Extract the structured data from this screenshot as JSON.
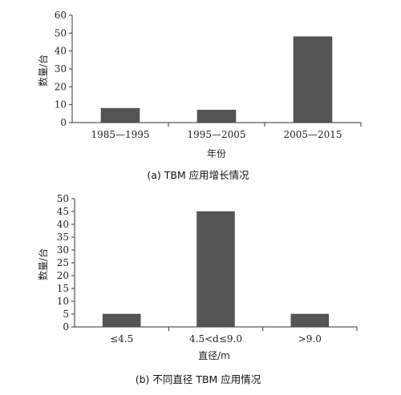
{
  "chart_data": [
    {
      "type": "bar",
      "categories": [
        "1985—1995",
        "1995—2005",
        "2005—2015"
      ],
      "values": [
        8,
        7,
        48
      ],
      "xlabel": "年份",
      "ylabel": "数量/台",
      "ylim": [
        0,
        60
      ],
      "yticks": [
        "0",
        "10",
        "20",
        "30",
        "40",
        "50",
        "60"
      ],
      "caption": "(a) TBM 应用增长情况",
      "grid": false
    },
    {
      "type": "bar",
      "categories": [
        "≤4.5",
        "4.5<d≤9.0",
        ">9.0"
      ],
      "values": [
        5,
        45,
        5
      ],
      "xlabel": "直径/m",
      "ylabel": "数量/台",
      "ylim": [
        0,
        50
      ],
      "yticks": [
        "0",
        "5",
        "10",
        "15",
        "20",
        "25",
        "30",
        "35",
        "40",
        "45",
        "50"
      ],
      "caption": "(b) 不同直径 TBM 应用情况",
      "grid": false
    }
  ],
  "colors": {
    "bar": "#555555",
    "axis": "#333333"
  }
}
